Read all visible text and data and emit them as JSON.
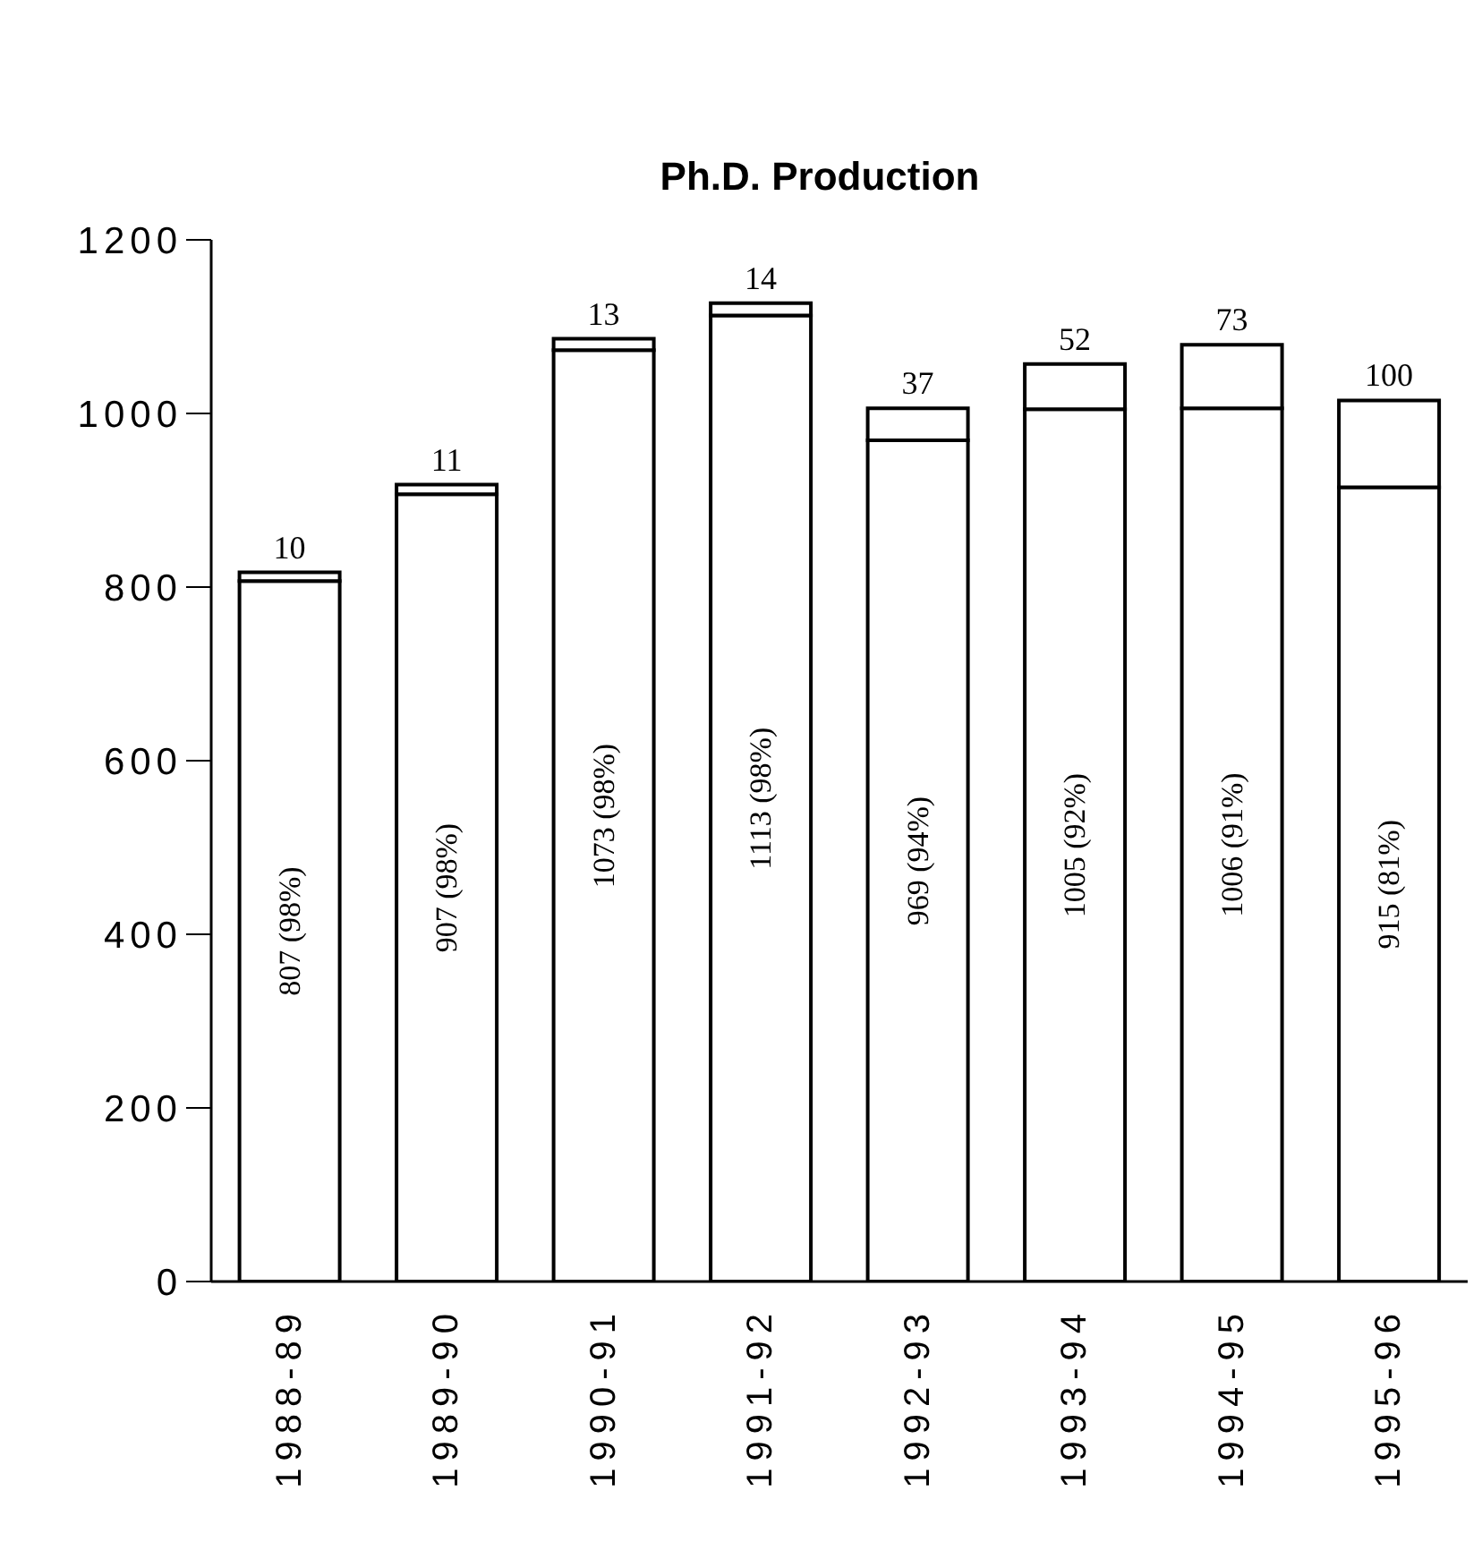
{
  "chart_data": {
    "type": "bar",
    "title": "Ph.D. Production",
    "stacked": true,
    "categories": [
      "1988-89",
      "1989-90",
      "1990-91",
      "1991-92",
      "1992-93",
      "1993-94",
      "1994-95",
      "1995-96"
    ],
    "series": [
      {
        "color": "#ffffff",
        "values": [
          807,
          907,
          1073,
          1113,
          969,
          1005,
          1006,
          915
        ],
        "value_labels": [
          "807  (98%)",
          "907  (98%)",
          "1073  (98%)",
          "1113  (98%)",
          "969 (94%)",
          "1005 (92%)",
          "1006 (91%)",
          "915 (81%)"
        ]
      },
      {
        "color": "#ffffff",
        "values": [
          10,
          11,
          13,
          14,
          37,
          52,
          73,
          100
        ],
        "value_labels": [
          "10",
          "11",
          "13",
          "14",
          "37",
          "52",
          "73",
          "100"
        ]
      }
    ],
    "ylim": [
      0,
      1200
    ],
    "yticks": [
      0,
      200,
      400,
      600,
      800,
      1000,
      1200
    ],
    "grid": false,
    "legend": false
  }
}
